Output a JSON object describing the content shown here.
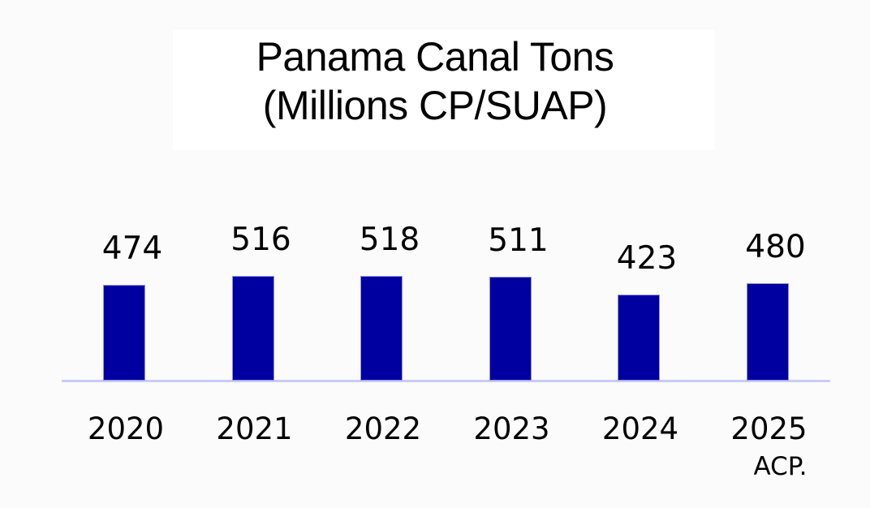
{
  "chart_data": {
    "type": "bar",
    "title": "Panama Canal Tons",
    "subtitle": "(Millions CP/SUAP)",
    "categories": [
      "2020",
      "2021",
      "2022",
      "2023",
      "2024",
      "2025"
    ],
    "values": [
      474,
      516,
      518,
      511,
      423,
      480
    ],
    "data_labels": [
      "474",
      "516",
      "518",
      "511",
      "423",
      "480"
    ],
    "annotations": [
      {
        "category": "2025",
        "text": "ACP."
      }
    ],
    "xlabel": "",
    "ylabel": "",
    "ylim": [
      0,
      550
    ],
    "grid": false,
    "legend": null,
    "bar_color": "#0000a0",
    "axis_color": "#c8ccf8"
  },
  "title": {
    "line1": "Panama Canal Tons",
    "line2": "(Millions CP/SUAP)"
  },
  "bars": [
    {
      "label": "2020",
      "value_text": "474"
    },
    {
      "label": "2021",
      "value_text": "516"
    },
    {
      "label": "2022",
      "value_text": "518"
    },
    {
      "label": "2023",
      "value_text": "511"
    },
    {
      "label": "2024",
      "value_text": "423"
    },
    {
      "label": "2025",
      "value_text": "480"
    }
  ],
  "note": "ACP."
}
